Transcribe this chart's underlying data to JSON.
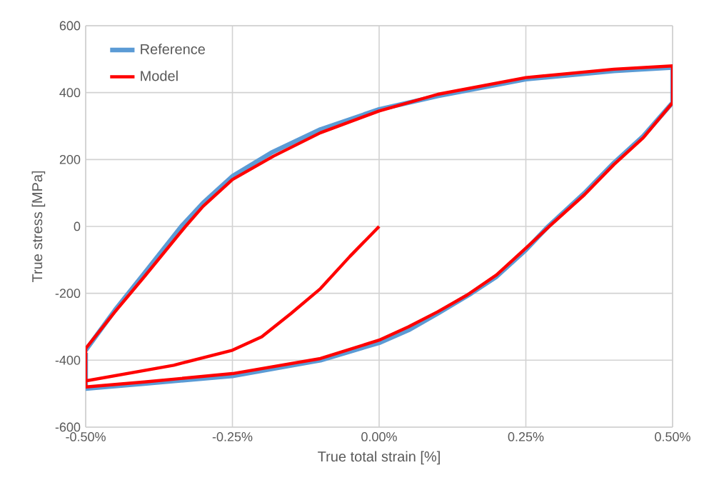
{
  "chart_data": {
    "type": "line",
    "xlabel": "True total strain [%]",
    "ylabel": "True stress [MPa]",
    "xlim": [
      -0.5,
      0.5
    ],
    "ylim": [
      -600,
      600
    ],
    "xticks": [
      {
        "value": -0.5,
        "label": "-0.50%"
      },
      {
        "value": -0.25,
        "label": "-0.25%"
      },
      {
        "value": 0,
        "label": "0.00%"
      },
      {
        "value": 0.25,
        "label": "0.25%"
      },
      {
        "value": 0.5,
        "label": "0.50%"
      }
    ],
    "yticks": [
      -600,
      -400,
      -200,
      0,
      200,
      400,
      600
    ],
    "grid": true,
    "legend": "top left",
    "marker": "none",
    "line_style": "solid",
    "series": [
      {
        "name": "Reference",
        "color": "#5b9bd5",
        "x": [
          -0.5,
          -0.45,
          -0.4,
          -0.337,
          -0.3,
          -0.25,
          -0.184,
          -0.1,
          0,
          0.1,
          0.25,
          0.4,
          0.5,
          0.5,
          0.45,
          0.4,
          0.35,
          0.288,
          0.25,
          0.2,
          0.157,
          0.1,
          0.05,
          0,
          -0.1,
          -0.25,
          -0.4,
          -0.5,
          -0.5
        ],
        "values": [
          -370,
          -250,
          -140,
          0,
          70,
          150,
          220,
          290,
          350,
          390,
          440,
          465,
          475,
          370,
          270,
          190,
          100,
          0,
          -70,
          -150,
          -200,
          -260,
          -310,
          -348,
          -400,
          -447,
          -470,
          -485,
          -378
        ]
      },
      {
        "name": "Model",
        "color": "#ff0000",
        "x": [
          0,
          -0.05,
          -0.1,
          -0.15,
          -0.2,
          -0.25,
          -0.35,
          -0.5,
          -0.5,
          -0.45,
          -0.4,
          -0.33,
          -0.3,
          -0.25,
          -0.18,
          -0.1,
          0,
          0.1,
          0.25,
          0.4,
          0.5,
          0.5,
          0.45,
          0.4,
          0.35,
          0.29,
          0.25,
          0.2,
          0.15,
          0.1,
          0.05,
          0,
          -0.1,
          -0.25,
          -0.4,
          -0.5,
          -0.5
        ],
        "values": [
          0,
          -90,
          -186,
          -260,
          -330,
          -370,
          -415,
          -462,
          -365,
          -255,
          -150,
          0,
          60,
          140,
          210,
          280,
          345,
          395,
          445,
          470,
          480,
          370,
          265,
          185,
          95,
          0,
          -65,
          -145,
          -205,
          -255,
          -300,
          -340,
          -395,
          -440,
          -465,
          -480,
          -372
        ]
      }
    ]
  }
}
